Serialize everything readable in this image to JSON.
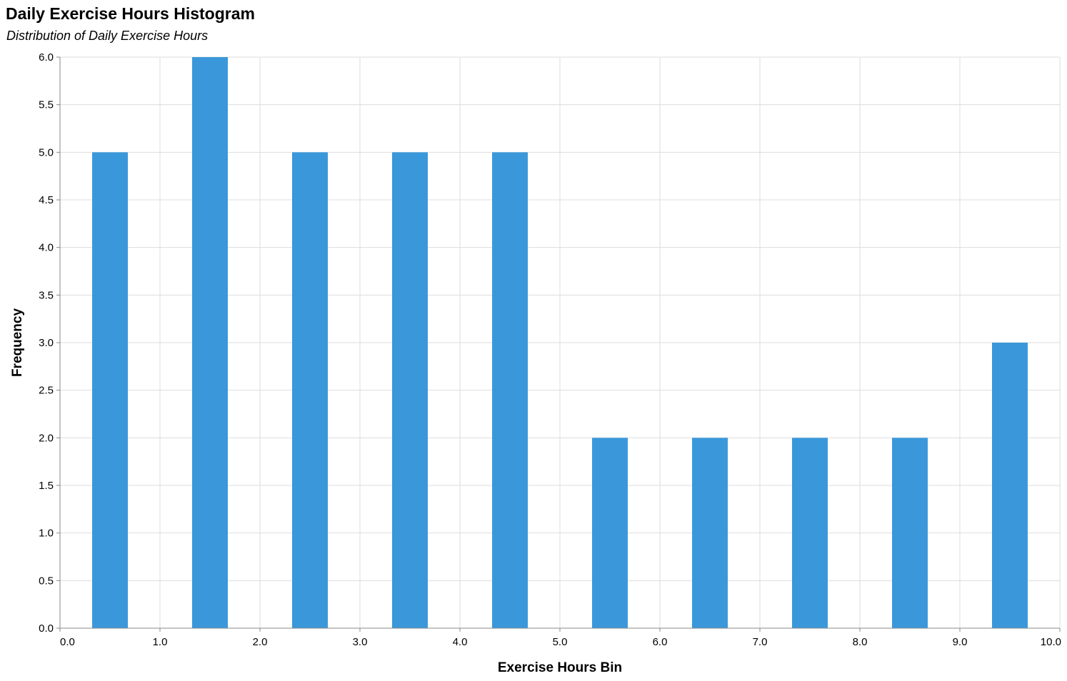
{
  "chart_data": {
    "type": "bar",
    "title": "Daily Exercise Hours Histogram",
    "subtitle": "Distribution of Daily Exercise Hours",
    "xlabel": "Exercise Hours Bin",
    "ylabel": "Frequency",
    "bins": [
      {
        "start": 0,
        "end": 1,
        "count": 5
      },
      {
        "start": 1,
        "end": 2,
        "count": 6
      },
      {
        "start": 2,
        "end": 3,
        "count": 5
      },
      {
        "start": 3,
        "end": 4,
        "count": 5
      },
      {
        "start": 4,
        "end": 5,
        "count": 5
      },
      {
        "start": 5,
        "end": 6,
        "count": 2
      },
      {
        "start": 6,
        "end": 7,
        "count": 2
      },
      {
        "start": 7,
        "end": 8,
        "count": 2
      },
      {
        "start": 8,
        "end": 9,
        "count": 2
      },
      {
        "start": 9,
        "end": 10,
        "count": 3
      }
    ],
    "xlim": [
      0,
      10
    ],
    "ylim": [
      0,
      6
    ],
    "x_ticks": [
      "0.0",
      "1.0",
      "2.0",
      "3.0",
      "4.0",
      "5.0",
      "6.0",
      "7.0",
      "8.0",
      "9.0",
      "10.0"
    ],
    "y_ticks": [
      "0.0",
      "0.5",
      "1.0",
      "1.5",
      "2.0",
      "2.5",
      "3.0",
      "3.5",
      "4.0",
      "4.5",
      "5.0",
      "5.5",
      "6.0"
    ],
    "grid": true,
    "bar_color": "#3a98da",
    "grid_color": "#dddddd",
    "axis_color": "#888888"
  }
}
